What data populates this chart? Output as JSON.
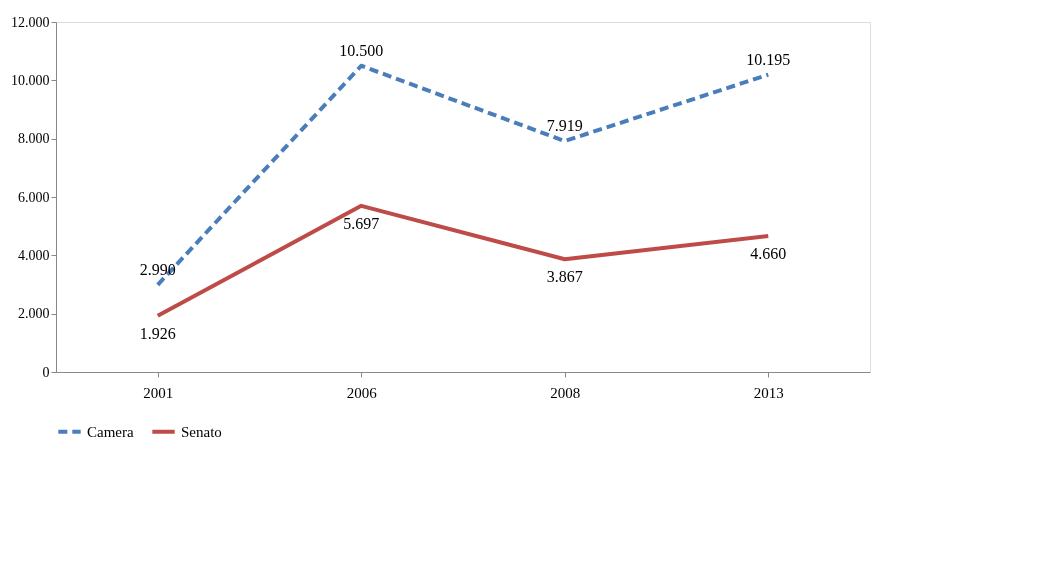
{
  "chart_data": {
    "type": "line",
    "categories": [
      "2001",
      "2006",
      "2008",
      "2013"
    ],
    "series": [
      {
        "name": "Camera",
        "color": "#4a7ebb",
        "line_style": "dashed",
        "values": [
          2990,
          10500,
          7919,
          10195
        ],
        "value_labels": [
          "2.990",
          "10.500",
          "7.919",
          "10.195"
        ]
      },
      {
        "name": "Senato",
        "color": "#be4b48",
        "line_style": "solid",
        "values": [
          1926,
          5697,
          3867,
          4660
        ],
        "value_labels": [
          "1.926",
          "5.697",
          "3.867",
          "4.660"
        ]
      }
    ],
    "ylim": [
      0,
      12000
    ],
    "yticks": [
      {
        "value": 0,
        "label": "0"
      },
      {
        "value": 2000,
        "label": "2.000"
      },
      {
        "value": 4000,
        "label": "4.000"
      },
      {
        "value": 6000,
        "label": "6.000"
      },
      {
        "value": 8000,
        "label": "8.000"
      },
      {
        "value": 10000,
        "label": "10.000"
      },
      {
        "value": 12000,
        "label": "12.000"
      }
    ],
    "grid": false,
    "legend": "bottom",
    "marker": "none"
  }
}
